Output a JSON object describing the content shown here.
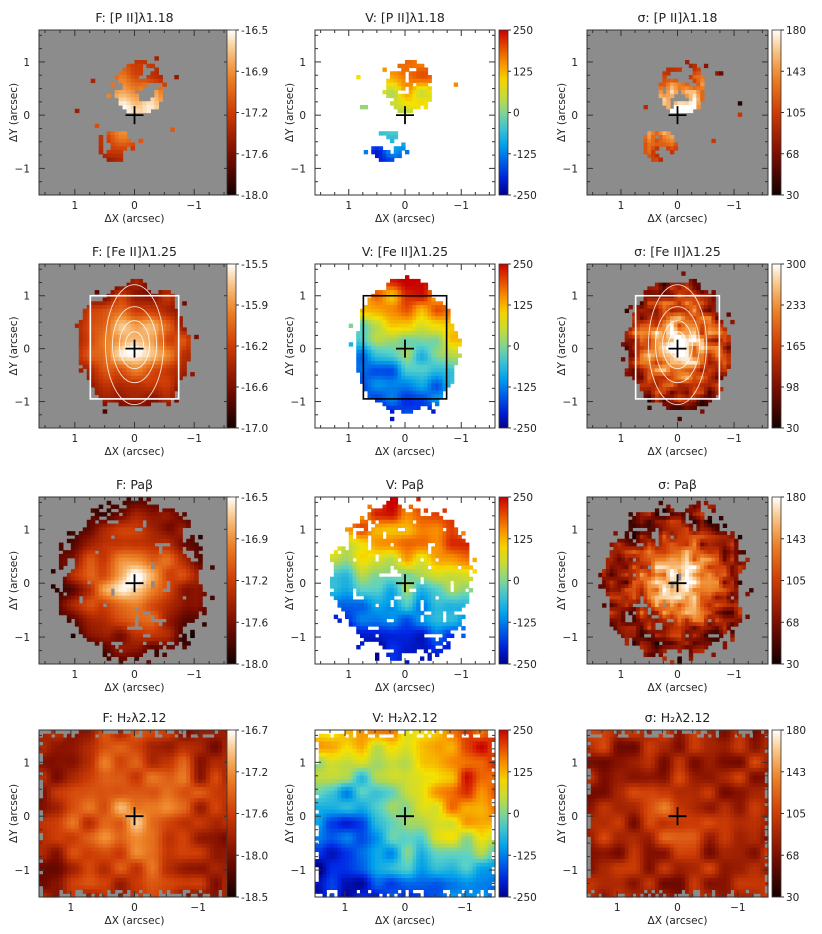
{
  "figure": {
    "axis_labels": {
      "x": "ΔX (arcsec)",
      "y": "ΔY (arcsec)"
    }
  },
  "chart_data": [
    {
      "type": "heatmap",
      "title": "F: [P II]λ1.18",
      "quantity": "flux",
      "colormap": "heat",
      "background": "gray",
      "xlim": [
        1.6,
        -1.6
      ],
      "ylim": [
        -1.5,
        1.6
      ],
      "x_ticks": [
        "1",
        "0",
        "−1"
      ],
      "y_ticks": [
        "1",
        "0",
        "−1"
      ],
      "colorbar_ticks": [
        "-16.5",
        "-16.9",
        "-17.2",
        "-17.6",
        "-18.0"
      ],
      "colorbar_range": [
        -18.0,
        -16.5
      ],
      "emission": "patchy",
      "extent": "compact"
    },
    {
      "type": "heatmap",
      "title": "V: [P II]λ1.18",
      "quantity": "velocity",
      "colormap": "jet",
      "background": "white",
      "xlim": [
        1.6,
        -1.6
      ],
      "ylim": [
        -1.5,
        1.6
      ],
      "x_ticks": [
        "1",
        "0",
        "−1"
      ],
      "y_ticks": [
        "1",
        "0",
        "−1"
      ],
      "colorbar_ticks": [
        "250",
        "125",
        "0",
        "-125",
        "-250"
      ],
      "colorbar_range": [
        -250,
        250
      ],
      "emission": "patchy",
      "extent": "compact"
    },
    {
      "type": "heatmap",
      "title": "σ: [P II]λ1.18",
      "quantity": "dispersion",
      "colormap": "heat",
      "background": "gray",
      "xlim": [
        1.6,
        -1.6
      ],
      "ylim": [
        -1.5,
        1.6
      ],
      "x_ticks": [
        "1",
        "0",
        "−1"
      ],
      "y_ticks": [
        "1",
        "0",
        "−1"
      ],
      "colorbar_ticks": [
        "180",
        "143",
        "105",
        "68",
        "30"
      ],
      "colorbar_range": [
        30,
        180
      ],
      "emission": "patchy",
      "extent": "compact"
    },
    {
      "type": "heatmap",
      "title": "F: [Fe II]λ1.25",
      "quantity": "flux",
      "colormap": "heat",
      "background": "gray",
      "xlim": [
        1.6,
        -1.6
      ],
      "ylim": [
        -1.5,
        1.6
      ],
      "x_ticks": [
        "1",
        "0",
        "−1"
      ],
      "y_ticks": [
        "1",
        "0",
        "−1"
      ],
      "colorbar_ticks": [
        "-15.5",
        "-15.9",
        "-16.2",
        "-16.6",
        "-17.0"
      ],
      "colorbar_range": [
        -17.0,
        -15.5
      ],
      "emission": "blob",
      "extent": "medium",
      "box": true,
      "box_color": "#ffffff",
      "contours": true
    },
    {
      "type": "heatmap",
      "title": "V: [Fe II]λ1.25",
      "quantity": "velocity",
      "colormap": "jet",
      "background": "white",
      "xlim": [
        1.6,
        -1.6
      ],
      "ylim": [
        -1.5,
        1.6
      ],
      "x_ticks": [
        "1",
        "0",
        "−1"
      ],
      "y_ticks": [
        "1",
        "0",
        "−1"
      ],
      "colorbar_ticks": [
        "250",
        "125",
        "0",
        "-125",
        "-250"
      ],
      "colorbar_range": [
        -250,
        250
      ],
      "emission": "blob",
      "extent": "medium",
      "box": true,
      "box_color": "#000000",
      "contours": false
    },
    {
      "type": "heatmap",
      "title": "σ: [Fe II]λ1.25",
      "quantity": "dispersion",
      "colormap": "heat",
      "background": "gray",
      "xlim": [
        1.6,
        -1.6
      ],
      "ylim": [
        -1.5,
        1.6
      ],
      "x_ticks": [
        "1",
        "0",
        "−1"
      ],
      "y_ticks": [
        "1",
        "0",
        "−1"
      ],
      "colorbar_ticks": [
        "300",
        "233",
        "165",
        "98",
        "30"
      ],
      "colorbar_range": [
        30,
        300
      ],
      "emission": "blob",
      "extent": "medium",
      "box": true,
      "box_color": "#ffffff",
      "contours": true
    },
    {
      "type": "heatmap",
      "title": "F: Paβ",
      "quantity": "flux",
      "colormap": "heat",
      "background": "gray",
      "xlim": [
        1.6,
        -1.6
      ],
      "ylim": [
        -1.5,
        1.6
      ],
      "x_ticks": [
        "1",
        "0",
        "−1"
      ],
      "y_ticks": [
        "1",
        "0",
        "−1"
      ],
      "colorbar_ticks": [
        "-16.5",
        "-16.9",
        "-17.2",
        "-17.6",
        "-18.0"
      ],
      "colorbar_range": [
        -18.0,
        -16.5
      ],
      "emission": "extended",
      "extent": "large"
    },
    {
      "type": "heatmap",
      "title": "V: Paβ",
      "quantity": "velocity",
      "colormap": "jet",
      "background": "white",
      "xlim": [
        1.6,
        -1.6
      ],
      "ylim": [
        -1.5,
        1.6
      ],
      "x_ticks": [
        "1",
        "0",
        "−1"
      ],
      "y_ticks": [
        "1",
        "0",
        "−1"
      ],
      "colorbar_ticks": [
        "250",
        "125",
        "0",
        "-125",
        "-250"
      ],
      "colorbar_range": [
        -250,
        250
      ],
      "emission": "extended",
      "extent": "large"
    },
    {
      "type": "heatmap",
      "title": "σ: Paβ",
      "quantity": "dispersion",
      "colormap": "heat",
      "background": "gray",
      "xlim": [
        1.6,
        -1.6
      ],
      "ylim": [
        -1.5,
        1.6
      ],
      "x_ticks": [
        "1",
        "0",
        "−1"
      ],
      "y_ticks": [
        "1",
        "0",
        "−1"
      ],
      "colorbar_ticks": [
        "180",
        "143",
        "105",
        "68",
        "30"
      ],
      "colorbar_range": [
        30,
        180
      ],
      "emission": "extended",
      "extent": "large"
    },
    {
      "type": "heatmap",
      "title": "F: H₂λ2.12",
      "quantity": "flux",
      "colormap": "heat",
      "background": "gray",
      "xlim": [
        1.5,
        -1.5
      ],
      "ylim": [
        -1.5,
        1.6
      ],
      "x_ticks": [
        "1",
        "0",
        "−1"
      ],
      "y_ticks": [
        "1",
        "0",
        "−1"
      ],
      "colorbar_ticks": [
        "-16.7",
        "-17.2",
        "-17.6",
        "-18.0",
        "-18.5"
      ],
      "colorbar_range": [
        -18.5,
        -16.7
      ],
      "emission": "full",
      "extent": "full"
    },
    {
      "type": "heatmap",
      "title": "V: H₂λ2.12",
      "quantity": "velocity",
      "colormap": "jet",
      "background": "white",
      "xlim": [
        1.5,
        -1.5
      ],
      "ylim": [
        -1.5,
        1.6
      ],
      "x_ticks": [
        "1",
        "0",
        "−1"
      ],
      "y_ticks": [
        "1",
        "0",
        "−1"
      ],
      "colorbar_ticks": [
        "250",
        "125",
        "0",
        "-125",
        "-250"
      ],
      "colorbar_range": [
        -250,
        250
      ],
      "emission": "full",
      "extent": "full"
    },
    {
      "type": "heatmap",
      "title": "σ: H₂λ2.12",
      "quantity": "dispersion",
      "colormap": "heat",
      "background": "gray",
      "xlim": [
        1.5,
        -1.5
      ],
      "ylim": [
        -1.5,
        1.6
      ],
      "x_ticks": [
        "1",
        "0",
        "−1"
      ],
      "y_ticks": [
        "1",
        "0",
        "−1"
      ],
      "colorbar_ticks": [
        "180",
        "143",
        "105",
        "68",
        "30"
      ],
      "colorbar_range": [
        30,
        180
      ],
      "emission": "full",
      "extent": "full"
    }
  ]
}
